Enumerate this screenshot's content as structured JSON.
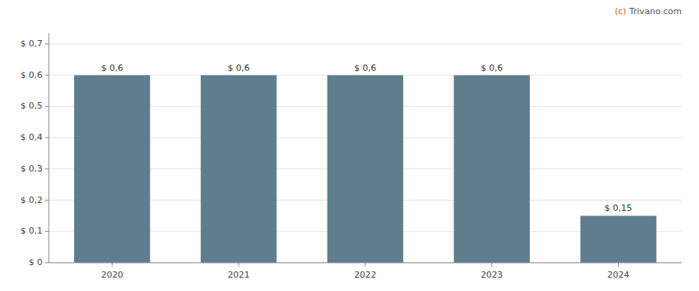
{
  "chart_data": {
    "type": "bar",
    "categories": [
      "2020",
      "2021",
      "2022",
      "2023",
      "2024"
    ],
    "values": [
      0.6,
      0.6,
      0.6,
      0.6,
      0.15
    ],
    "value_labels": [
      "$ 0,6",
      "$ 0,6",
      "$ 0,6",
      "$ 0,6",
      "$ 0,15"
    ],
    "color": "#5f7d8c",
    "ylim": [
      0,
      0.735
    ],
    "yticks": [
      {
        "value": 0.0,
        "label": "$ 0"
      },
      {
        "value": 0.1,
        "label": "$ 0,1"
      },
      {
        "value": 0.2,
        "label": "$ 0,2"
      },
      {
        "value": 0.3,
        "label": "$ 0,3"
      },
      {
        "value": 0.4,
        "label": "$ 0,4"
      },
      {
        "value": 0.5,
        "label": "$ 0,5"
      },
      {
        "value": 0.6,
        "label": "$ 0,6"
      },
      {
        "value": 0.7,
        "label": "$ 0,7"
      }
    ],
    "grid": true,
    "data_labels": true,
    "annotations": [
      "(c)",
      "Trivano.com"
    ]
  }
}
